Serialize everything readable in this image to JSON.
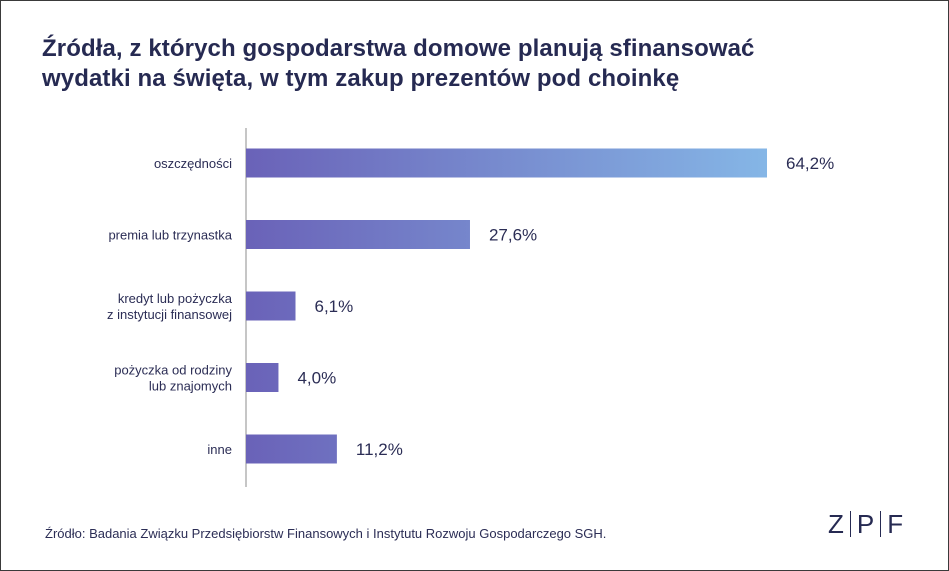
{
  "title_lines": [
    "Źródła, z których gospodarstwa domowe planują sfinansować",
    "wydatki na święta, w tym zakup prezentów pod choinkę"
  ],
  "source": "Źródło: Badania Związku Przedsiębiorstw Finansowych i Instytutu Rozwoju Gospodarczego SGH.",
  "logo": {
    "letters": [
      "Z",
      "P",
      "F"
    ]
  },
  "colors": {
    "bar_start": "#6a62b8",
    "bar_end": "#85b6e6",
    "text": "#2b2d55",
    "axis": "#8c8c8c"
  },
  "chart_data": {
    "type": "bar",
    "orientation": "horizontal",
    "categories": [
      [
        "oszczędności"
      ],
      [
        "premia lub trzynastka"
      ],
      [
        "kredyt lub pożyczka",
        "z instytucji finansowej"
      ],
      [
        "pożyczka od rodziny",
        "lub znajomych"
      ],
      [
        "inne"
      ]
    ],
    "values": [
      64.2,
      27.6,
      6.1,
      4.0,
      11.2
    ],
    "value_labels": [
      "64,2%",
      "27,6%",
      "6,1%",
      "4,0%",
      "11,2%"
    ],
    "unit": "%",
    "xlim": [
      0,
      64.2
    ],
    "grid": false,
    "legend": "none"
  }
}
